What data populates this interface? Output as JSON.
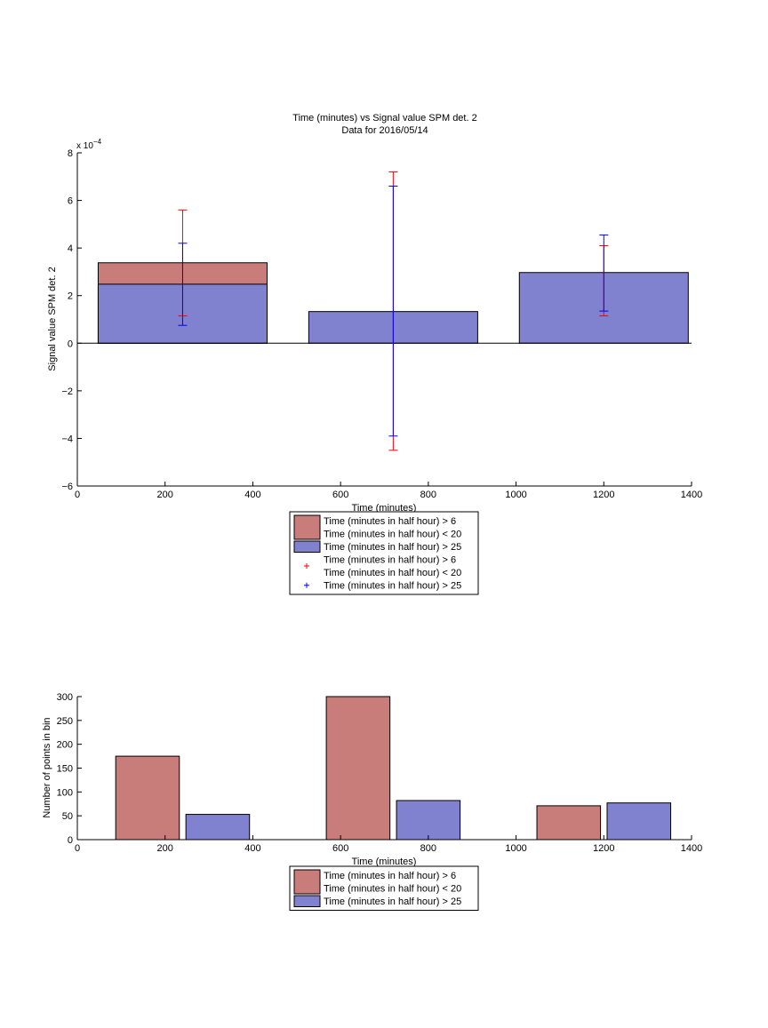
{
  "colors": {
    "red": "#c97d7a",
    "blue": "#8081cf",
    "err_red": "#ff0000",
    "err_blue": "#0000ff"
  },
  "chart_data": [
    {
      "type": "bar",
      "title": "Time (minutes) vs Signal value SPM det. 2",
      "subtitle": "Data for 2016/05/14",
      "xlabel": "Time (minutes)",
      "ylabel": "Signal value SPM det. 2",
      "multiplier_label": "x 10",
      "multiplier_exp": "−4",
      "xlim": [
        0,
        1400
      ],
      "ylim": [
        -6,
        8
      ],
      "xticks": [
        0,
        200,
        400,
        600,
        800,
        1000,
        1200,
        1400
      ],
      "yticks": [
        -6,
        -4,
        -2,
        0,
        2,
        4,
        6,
        8
      ],
      "ytick_labels": [
        "−6",
        "−4",
        "−2",
        "0",
        "2",
        "4",
        "6",
        "8"
      ],
      "bars": [
        {
          "x": 240,
          "width": 385,
          "red": 3.38,
          "blue": 2.48
        },
        {
          "x": 720,
          "width": 385,
          "red": 1.33,
          "blue": 1.33
        },
        {
          "x": 1200,
          "width": 385,
          "red": 2.97,
          "blue": 2.97
        }
      ],
      "errorbars": [
        {
          "series": "red",
          "points": [
            {
              "x": 240,
              "low": 1.15,
              "high": 5.6
            },
            {
              "x": 720,
              "low": -4.5,
              "high": 7.2
            },
            {
              "x": 1200,
              "low": 1.15,
              "high": 4.1
            }
          ]
        },
        {
          "series": "blue",
          "points": [
            {
              "x": 240,
              "low": 0.75,
              "high": 4.2
            },
            {
              "x": 720,
              "low": -3.9,
              "high": 6.6
            },
            {
              "x": 1200,
              "low": 1.35,
              "high": 4.55
            }
          ]
        }
      ],
      "legend": [
        {
          "kind": "patch",
          "color": "red",
          "lines": [
            "Time (minutes in half hour) > 6",
            "Time (minutes in half hour) < 20"
          ]
        },
        {
          "kind": "patch",
          "color": "blue",
          "lines": [
            "Time (minutes in half hour) > 25"
          ]
        },
        {
          "kind": "marker",
          "color": "err_red",
          "lines": [
            "Time (minutes in half hour) > 6",
            "Time (minutes in half hour) < 20"
          ]
        },
        {
          "kind": "marker",
          "color": "err_blue",
          "lines": [
            "Time (minutes in half hour) > 25"
          ]
        }
      ]
    },
    {
      "type": "bar",
      "xlabel": "Time (minutes)",
      "ylabel": "Number of points in bin",
      "xlim": [
        0,
        1400
      ],
      "ylim": [
        0,
        300
      ],
      "xticks": [
        0,
        200,
        400,
        600,
        800,
        1000,
        1200,
        1400
      ],
      "yticks": [
        0,
        50,
        100,
        150,
        200,
        250,
        300
      ],
      "series": [
        {
          "color": "red",
          "x": [
            160,
            640,
            1120
          ],
          "values": [
            175,
            300,
            71
          ]
        },
        {
          "color": "blue",
          "x": [
            320,
            800,
            1280
          ],
          "values": [
            53,
            82,
            77
          ]
        }
      ],
      "bar_width": 145,
      "legend": [
        {
          "kind": "patch",
          "color": "red",
          "lines": [
            "Time (minutes in half hour) > 6",
            "Time (minutes in half hour) < 20"
          ]
        },
        {
          "kind": "patch",
          "color": "blue",
          "lines": [
            "Time (minutes in half hour) > 25"
          ]
        }
      ]
    }
  ]
}
